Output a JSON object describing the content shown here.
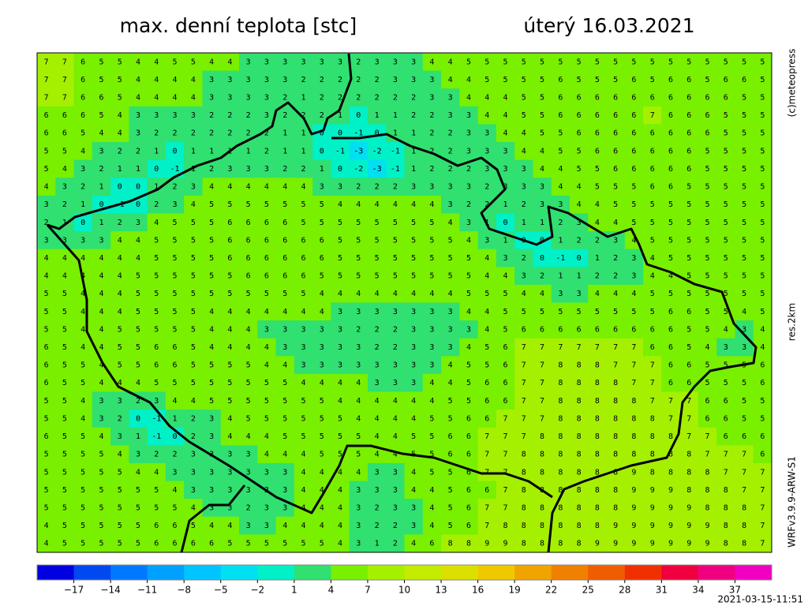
{
  "header": {
    "title": "max. denní teplota [stc]",
    "date": "úterý 16.03.2021"
  },
  "side_labels": {
    "copyright": "(c)meteopress",
    "resolution": "res.2km",
    "model": "WRFv3.9.9-ARW-S1"
  },
  "timestamp": "2021-03-15-11:51",
  "map": {
    "type": "grid",
    "values": [
      [
        7,
        7,
        6,
        5,
        5,
        4,
        4,
        5,
        5,
        4,
        4,
        3,
        3,
        3,
        3,
        3,
        3,
        2,
        3,
        3,
        3,
        4,
        4,
        5,
        5,
        5,
        5,
        5,
        5,
        5,
        5,
        5,
        5,
        5,
        5,
        5,
        5,
        5,
        5,
        5
      ],
      [
        7,
        7,
        6,
        5,
        5,
        4,
        4,
        4,
        4,
        3,
        3,
        3,
        3,
        3,
        2,
        2,
        2,
        2,
        2,
        3,
        3,
        3,
        4,
        4,
        5,
        5,
        5,
        5,
        6,
        5,
        5,
        5,
        6,
        5,
        6,
        6,
        5,
        6,
        6,
        5
      ],
      [
        7,
        7,
        6,
        6,
        5,
        4,
        4,
        4,
        4,
        3,
        3,
        3,
        3,
        2,
        1,
        2,
        2,
        2,
        2,
        2,
        2,
        3,
        3,
        4,
        4,
        4,
        5,
        5,
        6,
        6,
        6,
        6,
        6,
        6,
        6,
        6,
        6,
        6,
        5,
        5
      ],
      [
        6,
        6,
        6,
        5,
        4,
        3,
        3,
        3,
        3,
        2,
        2,
        2,
        3,
        2,
        2,
        2,
        1,
        0,
        1,
        1,
        2,
        2,
        3,
        3,
        4,
        4,
        5,
        5,
        6,
        6,
        6,
        6,
        6,
        7,
        6,
        6,
        6,
        5,
        5,
        5
      ],
      [
        6,
        6,
        5,
        4,
        4,
        3,
        2,
        2,
        2,
        2,
        2,
        2,
        2,
        1,
        1,
        0,
        0,
        -1,
        0,
        1,
        1,
        2,
        2,
        3,
        3,
        4,
        4,
        5,
        5,
        6,
        6,
        6,
        6,
        6,
        6,
        6,
        6,
        5,
        5,
        5
      ],
      [
        5,
        5,
        4,
        3,
        2,
        2,
        1,
        0,
        1,
        1,
        1,
        1,
        2,
        1,
        1,
        0,
        -1,
        -3,
        -2,
        -1,
        1,
        2,
        2,
        3,
        3,
        3,
        4,
        4,
        5,
        5,
        6,
        6,
        6,
        6,
        6,
        6,
        5,
        5,
        5,
        5
      ],
      [
        5,
        4,
        3,
        2,
        1,
        1,
        0,
        -1,
        1,
        2,
        3,
        3,
        3,
        2,
        2,
        1,
        0,
        -2,
        -3,
        -1,
        1,
        2,
        2,
        2,
        3,
        3,
        3,
        4,
        4,
        5,
        5,
        6,
        6,
        6,
        6,
        6,
        5,
        5,
        5,
        5
      ],
      [
        4,
        3,
        2,
        1,
        0,
        0,
        1,
        2,
        3,
        4,
        4,
        4,
        4,
        4,
        4,
        3,
        3,
        2,
        2,
        2,
        3,
        3,
        3,
        3,
        2,
        3,
        3,
        3,
        4,
        4,
        5,
        5,
        5,
        6,
        6,
        5,
        5,
        5,
        5,
        5
      ],
      [
        3,
        2,
        1,
        0,
        -1,
        0,
        2,
        3,
        4,
        5,
        5,
        5,
        5,
        5,
        5,
        5,
        4,
        4,
        4,
        4,
        4,
        4,
        3,
        2,
        2,
        1,
        2,
        3,
        3,
        4,
        4,
        5,
        5,
        5,
        5,
        5,
        5,
        5,
        5,
        5
      ],
      [
        2,
        1,
        0,
        1,
        2,
        3,
        4,
        5,
        5,
        5,
        6,
        6,
        6,
        6,
        5,
        5,
        5,
        5,
        5,
        5,
        5,
        5,
        4,
        3,
        1,
        0,
        1,
        1,
        2,
        3,
        4,
        4,
        5,
        5,
        5,
        5,
        5,
        5,
        5,
        5
      ],
      [
        3,
        3,
        3,
        3,
        4,
        4,
        5,
        5,
        5,
        5,
        6,
        6,
        6,
        6,
        6,
        6,
        5,
        5,
        5,
        5,
        5,
        5,
        5,
        4,
        3,
        1,
        0,
        0,
        1,
        2,
        2,
        3,
        4,
        5,
        5,
        5,
        5,
        5,
        5,
        5
      ],
      [
        4,
        4,
        4,
        4,
        4,
        4,
        5,
        5,
        5,
        5,
        6,
        6,
        6,
        6,
        6,
        6,
        5,
        5,
        5,
        5,
        5,
        5,
        5,
        5,
        4,
        3,
        2,
        0,
        -1,
        0,
        1,
        2,
        3,
        4,
        5,
        5,
        5,
        5,
        5,
        5
      ],
      [
        4,
        4,
        4,
        4,
        4,
        5,
        5,
        5,
        5,
        5,
        5,
        6,
        6,
        6,
        6,
        5,
        5,
        5,
        5,
        5,
        5,
        5,
        5,
        5,
        4,
        4,
        3,
        2,
        1,
        1,
        2,
        2,
        3,
        4,
        4,
        5,
        5,
        5,
        5,
        5
      ],
      [
        5,
        5,
        4,
        4,
        4,
        5,
        5,
        5,
        5,
        5,
        5,
        5,
        5,
        5,
        5,
        4,
        4,
        4,
        4,
        4,
        4,
        4,
        4,
        5,
        5,
        5,
        4,
        4,
        3,
        3,
        4,
        4,
        4,
        5,
        5,
        5,
        5,
        5,
        5,
        5
      ],
      [
        5,
        5,
        4,
        4,
        4,
        5,
        5,
        5,
        5,
        4,
        4,
        4,
        4,
        4,
        4,
        4,
        3,
        3,
        3,
        3,
        3,
        3,
        3,
        4,
        4,
        5,
        5,
        5,
        5,
        5,
        5,
        5,
        5,
        5,
        6,
        6,
        5,
        5,
        4,
        5
      ],
      [
        5,
        5,
        4,
        4,
        5,
        5,
        5,
        5,
        5,
        4,
        4,
        4,
        3,
        3,
        3,
        3,
        3,
        2,
        2,
        2,
        3,
        3,
        3,
        3,
        4,
        5,
        6,
        6,
        6,
        6,
        6,
        6,
        6,
        6,
        6,
        5,
        5,
        4,
        3,
        4
      ],
      [
        6,
        5,
        4,
        4,
        5,
        5,
        6,
        6,
        5,
        4,
        4,
        4,
        4,
        3,
        3,
        3,
        3,
        3,
        2,
        2,
        3,
        3,
        3,
        4,
        5,
        6,
        7,
        7,
        7,
        7,
        7,
        7,
        7,
        6,
        6,
        5,
        4,
        3,
        3,
        4
      ],
      [
        6,
        5,
        5,
        4,
        5,
        5,
        6,
        6,
        5,
        5,
        5,
        5,
        4,
        4,
        3,
        3,
        3,
        3,
        3,
        3,
        3,
        3,
        4,
        5,
        5,
        6,
        7,
        7,
        8,
        8,
        8,
        7,
        7,
        7,
        6,
        6,
        5,
        5,
        5,
        6
      ],
      [
        6,
        5,
        5,
        4,
        4,
        4,
        5,
        5,
        5,
        5,
        5,
        5,
        5,
        5,
        4,
        4,
        4,
        4,
        3,
        3,
        3,
        4,
        4,
        5,
        6,
        6,
        7,
        7,
        8,
        8,
        8,
        8,
        7,
        7,
        6,
        6,
        5,
        5,
        5,
        6
      ],
      [
        5,
        5,
        4,
        3,
        3,
        2,
        3,
        4,
        4,
        5,
        5,
        5,
        5,
        5,
        5,
        5,
        4,
        4,
        4,
        4,
        4,
        4,
        5,
        5,
        6,
        6,
        7,
        7,
        8,
        8,
        8,
        8,
        8,
        7,
        7,
        7,
        6,
        6,
        5,
        5
      ],
      [
        5,
        5,
        4,
        3,
        2,
        0,
        -1,
        1,
        2,
        3,
        4,
        5,
        5,
        5,
        5,
        5,
        5,
        4,
        4,
        4,
        4,
        5,
        5,
        6,
        6,
        7,
        7,
        7,
        8,
        8,
        8,
        8,
        8,
        8,
        7,
        7,
        6,
        6,
        5,
        5
      ],
      [
        6,
        5,
        5,
        4,
        3,
        1,
        -1,
        0,
        2,
        3,
        4,
        4,
        4,
        5,
        5,
        5,
        5,
        5,
        4,
        4,
        5,
        5,
        6,
        6,
        7,
        7,
        7,
        8,
        8,
        8,
        8,
        8,
        8,
        8,
        8,
        7,
        7,
        6,
        6,
        6
      ],
      [
        5,
        5,
        5,
        5,
        4,
        3,
        2,
        2,
        3,
        3,
        3,
        3,
        4,
        4,
        4,
        5,
        5,
        5,
        4,
        4,
        5,
        5,
        6,
        6,
        7,
        7,
        8,
        8,
        8,
        8,
        8,
        8,
        8,
        8,
        8,
        8,
        7,
        7,
        7,
        6
      ],
      [
        5,
        5,
        5,
        5,
        5,
        4,
        4,
        3,
        3,
        3,
        3,
        3,
        3,
        3,
        4,
        4,
        4,
        4,
        3,
        3,
        4,
        5,
        5,
        6,
        7,
        7,
        8,
        8,
        8,
        8,
        8,
        8,
        9,
        8,
        8,
        8,
        8,
        7,
        7,
        7
      ],
      [
        5,
        5,
        5,
        5,
        5,
        5,
        5,
        4,
        3,
        3,
        3,
        3,
        3,
        3,
        4,
        4,
        4,
        3,
        3,
        3,
        4,
        4,
        5,
        6,
        6,
        7,
        8,
        8,
        8,
        8,
        8,
        8,
        9,
        9,
        9,
        8,
        8,
        8,
        7,
        7
      ],
      [
        5,
        5,
        5,
        5,
        5,
        5,
        5,
        5,
        4,
        3,
        3,
        2,
        3,
        3,
        4,
        4,
        4,
        3,
        2,
        3,
        3,
        4,
        5,
        6,
        7,
        7,
        8,
        8,
        8,
        8,
        8,
        8,
        9,
        9,
        9,
        9,
        8,
        8,
        8,
        7
      ],
      [
        4,
        5,
        5,
        5,
        5,
        5,
        6,
        6,
        5,
        4,
        4,
        3,
        3,
        4,
        4,
        4,
        4,
        3,
        2,
        2,
        3,
        4,
        5,
        6,
        7,
        8,
        8,
        8,
        8,
        8,
        8,
        9,
        9,
        9,
        9,
        9,
        9,
        8,
        8,
        7
      ],
      [
        4,
        5,
        5,
        5,
        5,
        5,
        6,
        6,
        6,
        6,
        5,
        5,
        5,
        5,
        5,
        5,
        4,
        3,
        1,
        2,
        4,
        6,
        8,
        8,
        9,
        9,
        8,
        8,
        8,
        8,
        9,
        9,
        9,
        9,
        9,
        9,
        9,
        8,
        8,
        7
      ]
    ]
  },
  "colorbar": {
    "lim": [
      -20,
      40
    ],
    "colors": [
      "#0000e0",
      "#0048f0",
      "#0078ff",
      "#00a0ff",
      "#00c4ff",
      "#00e0f0",
      "#00f0c8",
      "#30e070",
      "#78f000",
      "#a4f000",
      "#c4ec00",
      "#dce000",
      "#f0c800",
      "#f0a400",
      "#f08000",
      "#f05c00",
      "#f03000",
      "#f00040",
      "#f00080",
      "#f000c0"
    ],
    "ticks": [
      {
        "value": -17,
        "label": "−17"
      },
      {
        "value": -14,
        "label": "−14"
      },
      {
        "value": -11,
        "label": "−11"
      },
      {
        "value": -8,
        "label": "−8"
      },
      {
        "value": -5,
        "label": "−5"
      },
      {
        "value": -2,
        "label": "−2"
      },
      1,
      4,
      7,
      10,
      13,
      16,
      19,
      22,
      25,
      28,
      31,
      34,
      37
    ]
  }
}
